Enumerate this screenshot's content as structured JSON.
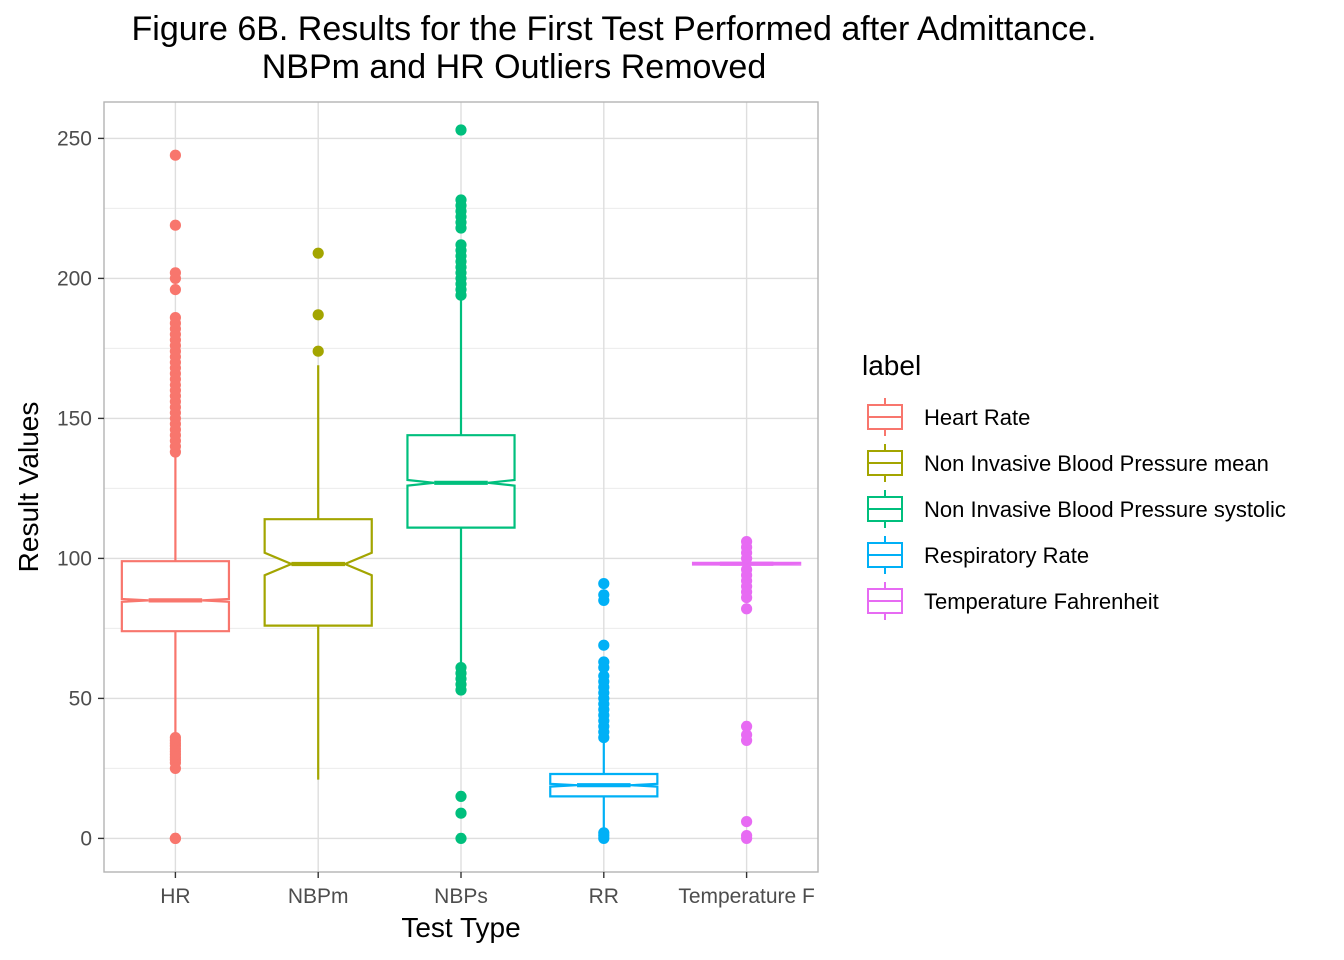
{
  "chart_data": {
    "type": "boxplot",
    "title": "Figure 6B. Results for the First Test Performed after Admittance.",
    "subtitle": "NBPm and HR Outliers Removed",
    "xlabel": "Test Type",
    "ylabel": "Result Values",
    "ylim": [
      -12,
      263
    ],
    "yticks": [
      0,
      50,
      100,
      150,
      200,
      250
    ],
    "categories": [
      "HR",
      "NBPm",
      "NBPs",
      "RR",
      "Temperature F"
    ],
    "grid": true,
    "notched": true,
    "legend": {
      "title": "label",
      "position": "right",
      "entries": [
        "Heart Rate",
        "Non Invasive Blood Pressure mean",
        "Non Invasive Blood Pressure systolic",
        "Respiratory Rate",
        "Temperature Fahrenheit"
      ]
    },
    "series": [
      {
        "name": "Heart Rate",
        "category": "HR",
        "color": "#F8766D",
        "whisker_low": 37,
        "q1": 74,
        "median": 85,
        "q3": 99,
        "whisker_high": 137,
        "notch_low": 84.5,
        "notch_high": 85.5,
        "outliers": [
          0,
          0,
          25,
          27,
          28,
          29,
          30,
          31,
          32,
          33,
          34,
          35,
          36,
          138,
          140,
          142,
          144,
          146,
          148,
          150,
          152,
          154,
          156,
          158,
          160,
          162,
          164,
          166,
          168,
          170,
          172,
          174,
          176,
          178,
          180,
          182,
          184,
          186,
          196,
          200,
          202,
          219,
          244
        ]
      },
      {
        "name": "Non Invasive Blood Pressure mean",
        "category": "NBPm",
        "color": "#A3A500",
        "whisker_low": 21,
        "q1": 76,
        "median": 98,
        "q3": 114,
        "whisker_high": 169,
        "notch_low": 94,
        "notch_high": 102,
        "outliers": [
          174,
          187,
          209
        ]
      },
      {
        "name": "Non Invasive Blood Pressure systolic",
        "category": "NBPs",
        "color": "#00BF7D",
        "whisker_low": 62,
        "q1": 111,
        "median": 127,
        "q3": 144,
        "whisker_high": 193,
        "notch_low": 126,
        "notch_high": 128,
        "outliers": [
          0,
          9,
          15,
          53,
          55,
          57,
          59,
          61,
          194,
          196,
          198,
          200,
          202,
          204,
          206,
          208,
          210,
          212,
          218,
          220,
          222,
          224,
          226,
          228,
          253
        ]
      },
      {
        "name": "Respiratory Rate",
        "category": "RR",
        "color": "#00B0F6",
        "whisker_low": 3,
        "q1": 15,
        "median": 19,
        "q3": 23,
        "whisker_high": 35,
        "notch_low": 18.5,
        "notch_high": 19.5,
        "outliers": [
          0,
          1,
          2,
          36,
          38,
          40,
          42,
          44,
          46,
          48,
          50,
          52,
          54,
          56,
          58,
          61,
          63,
          69,
          85,
          87,
          91
        ]
      },
      {
        "name": "Temperature Fahrenheit",
        "category": "Temperature F",
        "color": "#E76BF3",
        "whisker_low": 97.5,
        "q1": 97.8,
        "median": 98.1,
        "q3": 98.4,
        "whisker_high": 99,
        "notch_low": 98.05,
        "notch_high": 98.15,
        "outliers": [
          0,
          1,
          6,
          35,
          37,
          40,
          82,
          86,
          88,
          90,
          92,
          94,
          96,
          100,
          102,
          104,
          106
        ]
      }
    ]
  }
}
